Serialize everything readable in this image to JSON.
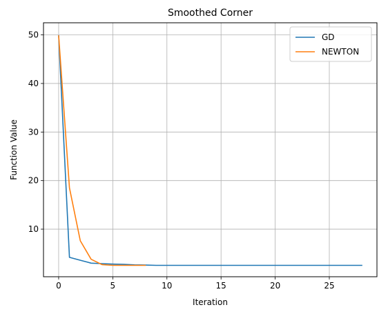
{
  "chart_data": {
    "type": "line",
    "title": "Smoothed Corner",
    "xlabel": "Iteration",
    "ylabel": "Function Value",
    "xlim": [
      -1.4,
      29.4
    ],
    "ylim": [
      0.2,
      52.5
    ],
    "xticks": [
      0,
      5,
      10,
      15,
      20,
      25
    ],
    "yticks": [
      10,
      20,
      30,
      40,
      50
    ],
    "grid": true,
    "legend_position": "top-right",
    "series": [
      {
        "name": "GD",
        "color": "#1f77b4",
        "x": [
          0,
          1,
          2,
          3,
          4,
          5,
          6,
          7,
          8,
          9,
          10,
          11,
          12,
          13,
          14,
          15,
          16,
          17,
          18,
          19,
          20,
          21,
          22,
          23,
          24,
          25,
          26,
          27,
          28
        ],
        "y": [
          49.8,
          4.2,
          3.6,
          3.0,
          2.9,
          2.8,
          2.75,
          2.65,
          2.6,
          2.55,
          2.55,
          2.55,
          2.55,
          2.55,
          2.55,
          2.55,
          2.55,
          2.55,
          2.55,
          2.55,
          2.55,
          2.55,
          2.55,
          2.55,
          2.55,
          2.55,
          2.55,
          2.55,
          2.55
        ]
      },
      {
        "name": "NEWTON",
        "color": "#ff7f0e",
        "x": [
          0,
          1,
          2,
          3,
          4,
          5,
          6,
          7,
          8
        ],
        "y": [
          49.8,
          18.5,
          7.6,
          3.8,
          2.7,
          2.55,
          2.55,
          2.55,
          2.55
        ]
      }
    ]
  }
}
